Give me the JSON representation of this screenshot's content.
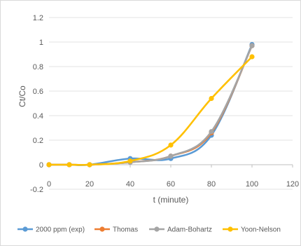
{
  "chart_data": {
    "type": "line",
    "title": "",
    "xlabel": "t (minute)",
    "ylabel": "Ct/Co",
    "xlim": [
      0,
      120
    ],
    "ylim": [
      -0.2,
      1.2
    ],
    "x_ticks": [
      0,
      20,
      40,
      60,
      80,
      100,
      120
    ],
    "y_ticks": [
      -0.2,
      0,
      0.2,
      0.4,
      0.6,
      0.8,
      1,
      1.2
    ],
    "y_tick_labels": [
      "-0.2",
      "0",
      "0.2",
      "0.4",
      "0.6",
      "0.8",
      "1",
      "1.2"
    ],
    "grid": "horizontal",
    "legend_position": "bottom",
    "series": [
      {
        "name": "2000 ppm (exp)",
        "color": "#5b9bd5",
        "x": [
          0,
          10,
          20,
          40,
          60,
          80,
          100
        ],
        "y": [
          0,
          0,
          0,
          0.05,
          0.05,
          0.24,
          0.98
        ]
      },
      {
        "name": "Thomas",
        "color": "#ed7d31",
        "x": [
          0,
          10,
          20,
          40,
          60,
          80,
          100
        ],
        "y": [
          0,
          0,
          0,
          0.02,
          0.07,
          0.26,
          0.97
        ]
      },
      {
        "name": "Adam-Bohartz",
        "color": "#a5a5a5",
        "x": [
          0,
          10,
          20,
          40,
          60,
          80,
          100
        ],
        "y": [
          0,
          0,
          0,
          0.02,
          0.07,
          0.27,
          0.97
        ]
      },
      {
        "name": "Yoon-Nelson",
        "color": "#ffc000",
        "x": [
          0,
          10,
          20,
          40,
          60,
          80,
          100
        ],
        "y": [
          0,
          0,
          0,
          0.03,
          0.16,
          0.54,
          0.88
        ]
      }
    ]
  }
}
